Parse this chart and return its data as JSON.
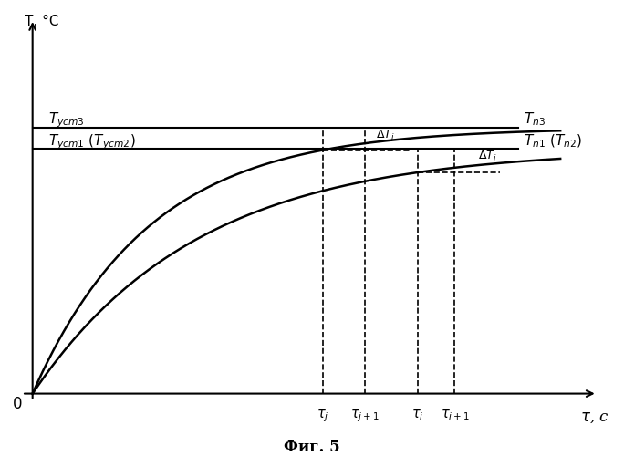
{
  "figsize": [
    6.84,
    5.0
  ],
  "dpi": 100,
  "background_color": "#ffffff",
  "A1": 0.76,
  "A2": 0.7,
  "k1": 4.5,
  "k2": 3.2,
  "tau_j": 0.55,
  "tau_j1": 0.63,
  "tau_i": 0.73,
  "tau_i1": 0.8,
  "x_max": 1.0,
  "y_max": 1.0,
  "caption": "Фиг. 5"
}
